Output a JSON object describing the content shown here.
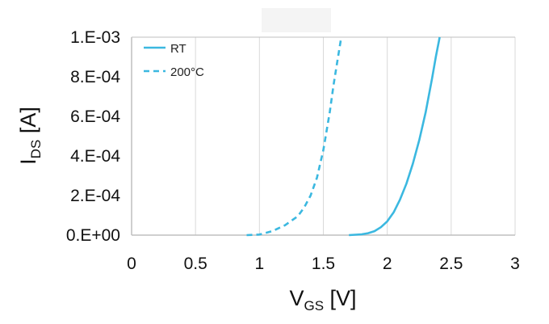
{
  "chart_data": {
    "type": "line",
    "xlabel": {
      "main": "V",
      "sub": "GS",
      "unit": " [V]"
    },
    "ylabel": {
      "main": "I",
      "sub": "DS",
      "unit": " [A]"
    },
    "xlim": [
      0,
      3
    ],
    "ylim": [
      0,
      0.001
    ],
    "x_ticks": [
      0,
      0.5,
      1,
      1.5,
      2,
      2.5,
      3
    ],
    "x_tick_labels": [
      "0",
      "0.5",
      "1",
      "1.5",
      "2",
      "2.5",
      "3"
    ],
    "y_ticks": [
      0,
      0.0002,
      0.0004,
      0.0006,
      0.0008,
      0.001
    ],
    "y_tick_labels": [
      "0.E+00",
      "2.E-04",
      "4.E-04",
      "6.E-04",
      "8.E-04",
      "1.E-03"
    ],
    "grid": "vertical",
    "legend_position": "top-left",
    "colors": {
      "series": "#3bb8e0",
      "grid": "#d9d9d9",
      "axis": "#bfbfbf"
    },
    "series": [
      {
        "name": "RT",
        "style": "solid",
        "points": [
          [
            1.7,
            0.0
          ],
          [
            1.8,
            4e-06
          ],
          [
            1.85,
            1e-05
          ],
          [
            1.9,
            2e-05
          ],
          [
            1.95,
            4e-05
          ],
          [
            2.0,
            7e-05
          ],
          [
            2.05,
            0.000115
          ],
          [
            2.1,
            0.00018
          ],
          [
            2.15,
            0.00026
          ],
          [
            2.2,
            0.00036
          ],
          [
            2.25,
            0.00048
          ],
          [
            2.3,
            0.00062
          ],
          [
            2.35,
            0.00079
          ],
          [
            2.38,
            0.0009
          ],
          [
            2.41,
            0.001
          ]
        ]
      },
      {
        "name": "200°C",
        "style": "dashed",
        "points": [
          [
            0.9,
            0.0
          ],
          [
            1.0,
            3e-06
          ],
          [
            1.1,
            2e-05
          ],
          [
            1.2,
            5e-05
          ],
          [
            1.3,
            9.5e-05
          ],
          [
            1.35,
            0.00014
          ],
          [
            1.4,
            0.0002
          ],
          [
            1.45,
            0.00029
          ],
          [
            1.5,
            0.00043
          ],
          [
            1.55,
            0.00062
          ],
          [
            1.58,
            0.00076
          ],
          [
            1.61,
            0.00088
          ],
          [
            1.64,
            0.001
          ]
        ]
      }
    ]
  }
}
